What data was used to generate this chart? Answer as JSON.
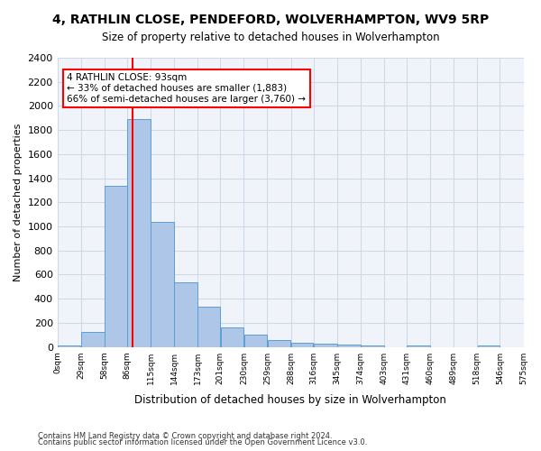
{
  "title": "4, RATHLIN CLOSE, PENDEFORD, WOLVERHAMPTON, WV9 5RP",
  "subtitle": "Size of property relative to detached houses in Wolverhampton",
  "xlabel": "Distribution of detached houses by size in Wolverhampton",
  "ylabel": "Number of detached properties",
  "bar_color": "#aec6e8",
  "bar_edge_color": "#5a9fd4",
  "grid_color": "#d0d8e8",
  "background_color": "#f0f4fa",
  "vline_x": 93,
  "vline_color": "red",
  "annotation_text": "4 RATHLIN CLOSE: 93sqm\n← 33% of detached houses are smaller (1,883)\n66% of semi-detached houses are larger (3,760) →",
  "annotation_box_color": "white",
  "annotation_box_edge": "red",
  "footnote1": "Contains HM Land Registry data © Crown copyright and database right 2024.",
  "footnote2": "Contains public sector information licensed under the Open Government Licence v3.0.",
  "bin_edges": [
    0,
    29,
    58,
    86,
    115,
    144,
    173,
    201,
    230,
    259,
    288,
    316,
    345,
    374,
    403,
    431,
    460,
    489,
    518,
    546,
    575
  ],
  "bin_labels": [
    "0sqm",
    "29sqm",
    "58sqm",
    "86sqm",
    "115sqm",
    "144sqm",
    "173sqm",
    "201sqm",
    "230sqm",
    "259sqm",
    "288sqm",
    "316sqm",
    "345sqm",
    "374sqm",
    "403sqm",
    "431sqm",
    "460sqm",
    "489sqm",
    "518sqm",
    "546sqm",
    "575sqm"
  ],
  "bar_heights": [
    15,
    125,
    1340,
    1890,
    1040,
    540,
    335,
    165,
    105,
    60,
    35,
    25,
    20,
    15,
    0,
    15,
    0,
    0,
    15,
    0
  ],
  "ylim": [
    0,
    2400
  ],
  "yticks": [
    0,
    200,
    400,
    600,
    800,
    1000,
    1200,
    1400,
    1600,
    1800,
    2000,
    2200,
    2400
  ]
}
